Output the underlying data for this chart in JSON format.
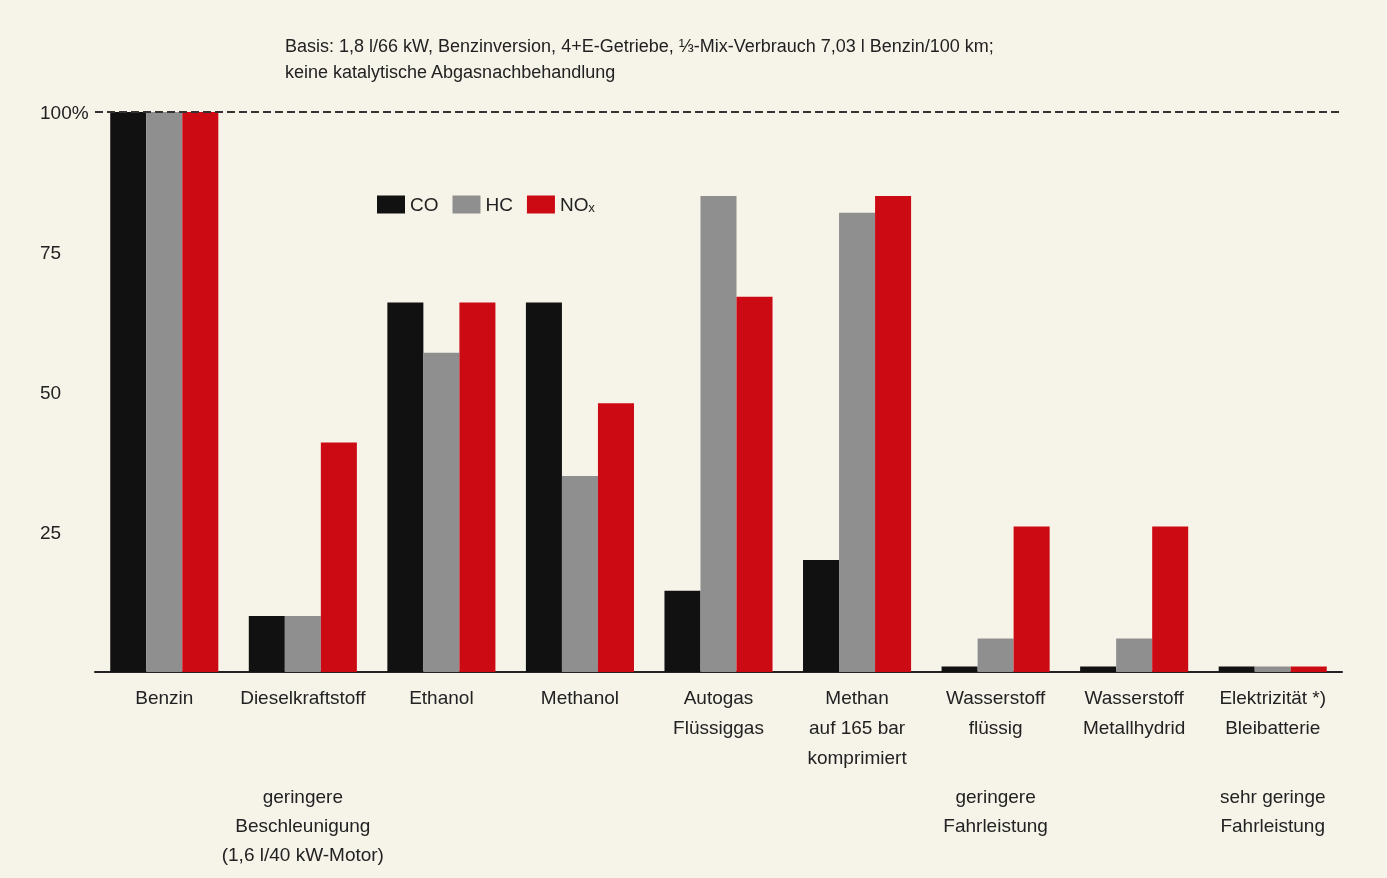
{
  "chart_data": {
    "type": "bar",
    "subtitle": "Basis: 1,8 l/66 kW, Benzinversion, 4+E-Getriebe, ⅓-Mix-Verbrauch 7,03 l Benzin/100 km;\nkeine katalytische Abgasnachbehandlung",
    "categories": [
      "Benzin",
      "Dieselkraftstoff",
      "Ethanol",
      "Methanol",
      "Autogas\nFlüssiggas",
      "Methan\nauf 165 bar\nkomprimiert",
      "Wasserstoff\nflüssig",
      "Wasserstoff\nMetallhydrid",
      "Elektrizität *)\nBleibatterie"
    ],
    "series": [
      {
        "name": "CO",
        "color": "#111111",
        "values": [
          100,
          10,
          66,
          66,
          14.5,
          20,
          1,
          1,
          1
        ]
      },
      {
        "name": "HC",
        "color": "#8f8f8f",
        "values": [
          100,
          10,
          57,
          35,
          85,
          82,
          6,
          6,
          1
        ]
      },
      {
        "name": "NOₓ",
        "color": "#cc0a14",
        "values": [
          100,
          41,
          66,
          48,
          67,
          85,
          26,
          26,
          1
        ]
      }
    ],
    "ylim": [
      0,
      100
    ],
    "yticks": [
      {
        "value": 100,
        "label": "100%"
      },
      75,
      50,
      25
    ],
    "ref_lines": [
      {
        "axis": "y",
        "value": 100,
        "line_style": "dashed",
        "color": "#333333"
      }
    ],
    "annotations": [
      "geringere\nBeschleunigung\n(1,6 l/40 kW-Motor)",
      "geringere\nFahrleistung",
      "sehr geringe\nFahrleistung"
    ],
    "grid": false,
    "legend": "top"
  }
}
